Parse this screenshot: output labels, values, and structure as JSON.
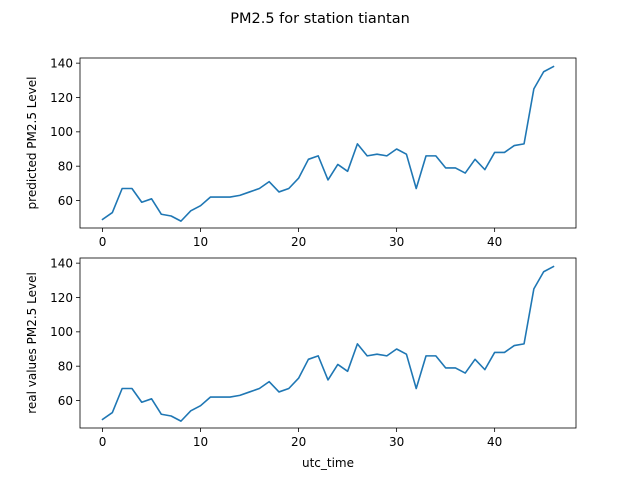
{
  "title": "PM2.5 for station tiantan",
  "colors": {
    "line": "#1f77b4",
    "axes": "#000000",
    "background": "#ffffff"
  },
  "chart_data": [
    {
      "type": "line",
      "title": "",
      "xlabel": "",
      "ylabel": "predicted PM2.5 Level",
      "xlim": [
        -2.3,
        48.3
      ],
      "ylim": [
        44,
        143
      ],
      "xticks": [
        0,
        10,
        20,
        30,
        40
      ],
      "yticks": [
        60,
        80,
        100,
        120,
        140
      ],
      "grid": false,
      "series": [
        {
          "x": [
            0,
            1,
            2,
            3,
            4,
            5,
            6,
            7,
            8,
            9,
            10,
            11,
            12,
            13,
            14,
            15,
            16,
            17,
            18,
            19,
            20,
            21,
            22,
            23,
            24,
            25,
            26,
            27,
            28,
            29,
            30,
            31,
            32,
            33,
            34,
            35,
            36,
            37,
            38,
            39,
            40,
            41,
            42,
            43,
            44,
            45,
            46
          ],
          "values": [
            49,
            53,
            67,
            67,
            59,
            61,
            52,
            51,
            48,
            54,
            57,
            62,
            62,
            62,
            63,
            65,
            67,
            71,
            65,
            67,
            73,
            84,
            86,
            72,
            81,
            77,
            93,
            86,
            87,
            86,
            90,
            87,
            67,
            86,
            86,
            79,
            79,
            76,
            84,
            78,
            88,
            88,
            92,
            93,
            125,
            135,
            138
          ]
        }
      ]
    },
    {
      "type": "line",
      "title": "",
      "xlabel": "utc_time",
      "ylabel": "real values PM2.5 Level",
      "xlim": [
        -2.3,
        48.3
      ],
      "ylim": [
        44,
        143
      ],
      "xticks": [
        0,
        10,
        20,
        30,
        40
      ],
      "yticks": [
        60,
        80,
        100,
        120,
        140
      ],
      "grid": false,
      "series": [
        {
          "x": [
            0,
            1,
            2,
            3,
            4,
            5,
            6,
            7,
            8,
            9,
            10,
            11,
            12,
            13,
            14,
            15,
            16,
            17,
            18,
            19,
            20,
            21,
            22,
            23,
            24,
            25,
            26,
            27,
            28,
            29,
            30,
            31,
            32,
            33,
            34,
            35,
            36,
            37,
            38,
            39,
            40,
            41,
            42,
            43,
            44,
            45,
            46
          ],
          "values": [
            49,
            53,
            67,
            67,
            59,
            61,
            52,
            51,
            48,
            54,
            57,
            62,
            62,
            62,
            63,
            65,
            67,
            71,
            65,
            67,
            73,
            84,
            86,
            72,
            81,
            77,
            93,
            86,
            87,
            86,
            90,
            87,
            67,
            86,
            86,
            79,
            79,
            76,
            84,
            78,
            88,
            88,
            92,
            93,
            125,
            135,
            138
          ]
        }
      ]
    }
  ]
}
